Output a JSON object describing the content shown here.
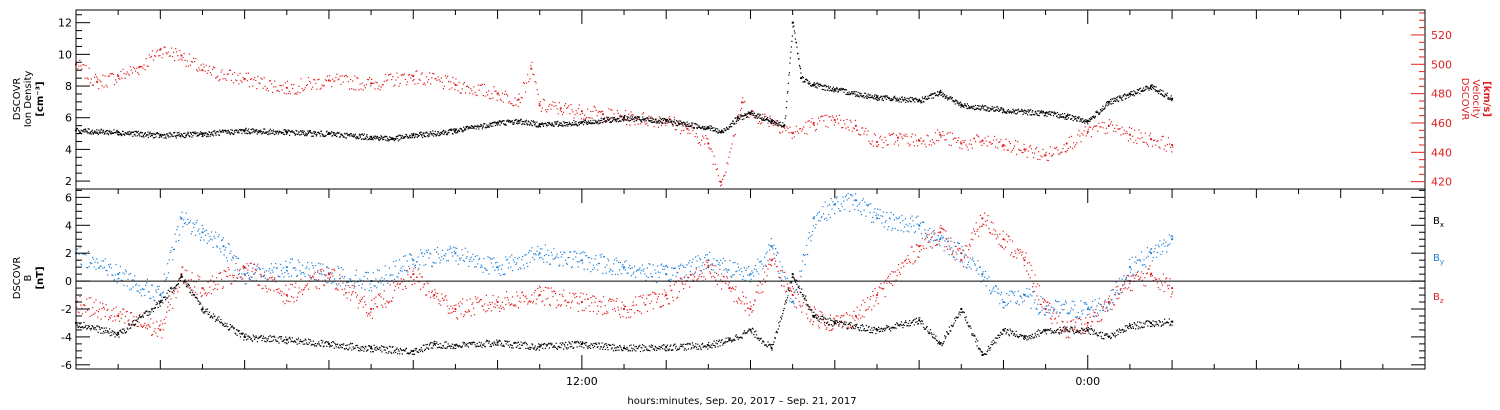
{
  "chart_data": [
    {
      "type": "scatter",
      "panel": "top",
      "ylabel_left_lines": [
        "DSCOVR",
        "Ion Density",
        "[cm⁻³]"
      ],
      "ylabel_right_lines": [
        "DSCOVR",
        "Velocity",
        "[km/s]"
      ],
      "left_ylim": [
        1.5,
        12.8
      ],
      "left_ticks": [
        "2",
        "4",
        "6",
        "8",
        "10",
        "12"
      ],
      "right_ylim": [
        415,
        537
      ],
      "right_ticks": [
        "420",
        "440",
        "460",
        "480",
        "500",
        "520"
      ],
      "series": [
        {
          "name": "Ion Density",
          "axis": "left",
          "color": "#000000",
          "x": [
            0,
            1,
            2,
            3,
            4,
            5,
            6,
            7,
            7.5,
            8,
            9,
            10,
            10.5,
            11,
            12,
            13,
            14,
            15,
            15.3,
            15.7,
            16,
            16.5,
            16.8,
            17,
            17.2,
            17.5,
            18,
            19,
            20,
            20.5,
            21,
            22,
            23,
            23.5,
            24,
            24.5,
            25,
            25.5,
            26
          ],
          "y": [
            5.2,
            5.1,
            4.9,
            5.0,
            5.2,
            5.1,
            5.0,
            4.8,
            4.7,
            4.9,
            5.2,
            5.7,
            5.8,
            5.6,
            5.7,
            6.0,
            5.8,
            5.4,
            5.1,
            6.0,
            6.3,
            5.8,
            5.5,
            12.0,
            8.5,
            8.1,
            7.8,
            7.3,
            7.1,
            7.6,
            6.8,
            6.5,
            6.3,
            6.1,
            5.8,
            7.0,
            7.5,
            8.0,
            7.2
          ]
        },
        {
          "name": "Velocity",
          "axis": "right",
          "color": "#e02020",
          "x": [
            0,
            0.5,
            1,
            1.5,
            2,
            2.5,
            3,
            4,
            5,
            6,
            7,
            8,
            9,
            10,
            10.5,
            10.8,
            11,
            11.5,
            12,
            12.5,
            13,
            14,
            14.5,
            15,
            15.3,
            15.8,
            16,
            16.5,
            17,
            17.5,
            18,
            18.5,
            19,
            19.5,
            20,
            20.5,
            21,
            21.5,
            22,
            22.5,
            23,
            23.5,
            24,
            24.5,
            25,
            25.5,
            26
          ],
          "y": [
            500,
            488,
            492,
            498,
            510,
            506,
            496,
            490,
            484,
            489,
            487,
            492,
            486,
            480,
            476,
            497,
            472,
            470,
            468,
            466,
            464,
            462,
            456,
            446,
            420,
            474,
            466,
            462,
            453,
            460,
            462,
            458,
            447,
            450,
            448,
            452,
            446,
            448,
            445,
            442,
            438,
            446,
            454,
            458,
            452,
            449,
            445
          ]
        }
      ]
    },
    {
      "type": "scatter",
      "panel": "bottom",
      "ylabel_left_lines": [
        "DSCOVR",
        "B",
        "[nT]"
      ],
      "ylim": [
        -6.3,
        6.6
      ],
      "ticks": [
        "-6",
        "-4",
        "-2",
        "0",
        "2",
        "4",
        "6"
      ],
      "zero_line": true,
      "legend_position": "right",
      "series": [
        {
          "name": "Bx",
          "label_main": "B",
          "label_sub": "x",
          "color": "#000000",
          "x": [
            0,
            1,
            2,
            2.5,
            3,
            4,
            5,
            6,
            7,
            8,
            8.5,
            9,
            10,
            11,
            12,
            13,
            14,
            15,
            15.5,
            16,
            16.5,
            17,
            17.5,
            18,
            19,
            20,
            20.5,
            21,
            21.5,
            22,
            22.5,
            23,
            24,
            24.5,
            25,
            25.5,
            26
          ],
          "y": [
            -3.0,
            -3.8,
            -1.5,
            0.3,
            -2.0,
            -4.0,
            -4.2,
            -4.5,
            -4.8,
            -5.0,
            -4.5,
            -4.6,
            -4.4,
            -4.7,
            -4.5,
            -4.8,
            -4.7,
            -4.6,
            -4.2,
            -3.5,
            -4.8,
            0.5,
            -2.5,
            -3.0,
            -3.5,
            -2.8,
            -4.5,
            -2.0,
            -5.3,
            -3.5,
            -4.0,
            -3.5,
            -3.5,
            -4.0,
            -3.2,
            -3.0,
            -2.9
          ]
        },
        {
          "name": "By",
          "label_main": "B",
          "label_sub": "y",
          "color": "#1f7fd6",
          "x": [
            0,
            1,
            2,
            2.5,
            3,
            3.5,
            4,
            5,
            6,
            7,
            8,
            9,
            10,
            11,
            12,
            13,
            14,
            15,
            16,
            16.5,
            17,
            17.5,
            18,
            18.5,
            19,
            20,
            20.5,
            21,
            21.5,
            22,
            22.5,
            23,
            24,
            24.5,
            25,
            25.5,
            26
          ],
          "y": [
            2.0,
            0.5,
            -1.0,
            4.5,
            3.5,
            2.5,
            0.5,
            1.0,
            0.5,
            0.0,
            1.5,
            2.0,
            1.0,
            2.0,
            1.5,
            1.0,
            0.5,
            1.5,
            0.5,
            2.5,
            -1.5,
            4.5,
            5.5,
            5.8,
            4.5,
            4.0,
            3.0,
            2.0,
            0.5,
            -1.5,
            -1.0,
            -2.0,
            -2.0,
            -1.5,
            1.0,
            2.0,
            3.0
          ]
        },
        {
          "name": "Bz",
          "label_main": "B",
          "label_sub": "z",
          "color": "#e02020",
          "x": [
            0,
            1,
            2,
            2.5,
            3,
            4,
            5,
            6,
            7,
            8,
            8.5,
            9,
            10,
            11,
            12,
            13,
            14,
            15,
            15.5,
            16,
            16.5,
            17,
            17.5,
            18,
            18.5,
            19,
            20,
            20.5,
            21,
            21.5,
            22,
            22.5,
            23,
            23.5,
            24,
            24.5,
            25,
            25.5,
            26
          ],
          "y": [
            -1.5,
            -2.5,
            -3.5,
            0.5,
            -0.5,
            1.0,
            -1.0,
            0.5,
            -2.0,
            0.5,
            -1.0,
            -2.0,
            -1.5,
            -1.0,
            -1.5,
            -2.0,
            -1.0,
            1.0,
            -0.5,
            -2.0,
            1.5,
            -1.0,
            -2.5,
            -3.0,
            -2.5,
            -1.0,
            2.5,
            3.5,
            1.5,
            4.5,
            3.0,
            1.5,
            -2.0,
            -3.5,
            -3.0,
            -1.5,
            0.0,
            0.5,
            -0.5
          ]
        }
      ]
    }
  ],
  "x_axis": {
    "range_hours": [
      0,
      32
    ],
    "tick_labels": [
      {
        "hour": 12,
        "label": "12:00"
      },
      {
        "hour": 24,
        "label": "0:00"
      }
    ],
    "xlabel": "hours:minutes, Sep. 20, 2017 – Sep. 21, 2017"
  }
}
